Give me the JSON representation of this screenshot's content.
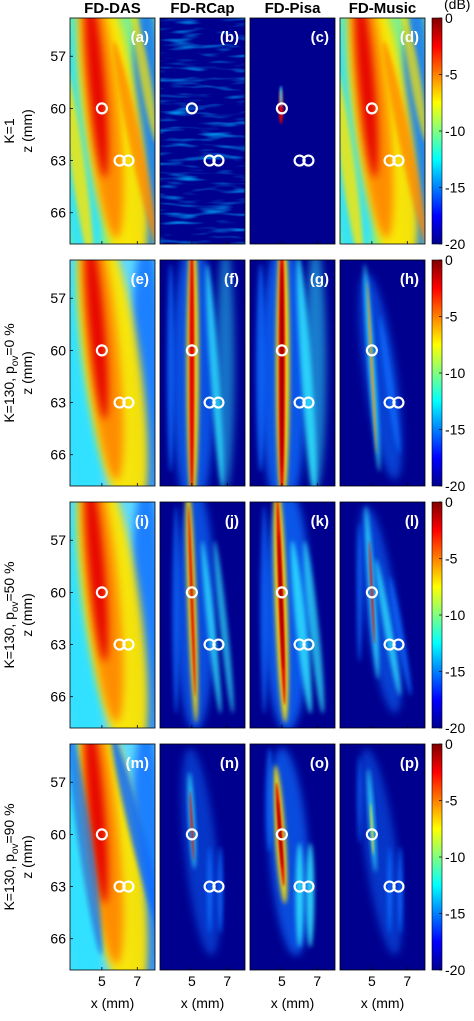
{
  "chart_data": {
    "type": "heatmap",
    "columns": [
      "FD-DAS",
      "FD-RCap",
      "FD-Pisa",
      "FD-Music"
    ],
    "rows": [
      {
        "label_main": "K=1",
        "label_sub": "",
        "label_tail": ""
      },
      {
        "label_main": "K=130, p",
        "label_sub": "ov",
        "label_tail": "=0 %"
      },
      {
        "label_main": "K=130, p",
        "label_sub": "ov",
        "label_tail": "=50 %"
      },
      {
        "label_main": "K=130, p",
        "label_sub": "ov",
        "label_tail": "=90 %"
      }
    ],
    "panel_labels": [
      "(a)",
      "(b)",
      "(c)",
      "(d)",
      "(e)",
      "(f)",
      "(g)",
      "(h)",
      "(i)",
      "(j)",
      "(k)",
      "(l)",
      "(m)",
      "(n)",
      "(o)",
      "(p)"
    ],
    "xlabel": "x (mm)",
    "ylabel": "z (mm)",
    "xlim": [
      3.2,
      8.0
    ],
    "ylim": [
      67.8,
      54.8
    ],
    "xticks": [
      5,
      7
    ],
    "yticks": [
      57,
      60,
      63,
      66
    ],
    "colorbar": {
      "unit": "(dB)",
      "range": [
        -20,
        0
      ],
      "ticks": [
        0,
        -5,
        -10,
        -15,
        -20
      ],
      "colormap": [
        "#00008f",
        "#0000ff",
        "#0080ff",
        "#00ffff",
        "#80ff80",
        "#ffff00",
        "#ff8000",
        "#ff0000",
        "#800000"
      ]
    },
    "targets": [
      {
        "x": 5.0,
        "z": 60.0
      },
      {
        "x": 6.0,
        "z": 63.0
      },
      {
        "x": 6.5,
        "z": 63.0
      }
    ],
    "target_color": "#ffffff"
  }
}
